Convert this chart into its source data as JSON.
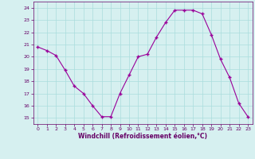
{
  "x": [
    0,
    1,
    2,
    3,
    4,
    5,
    6,
    7,
    8,
    9,
    10,
    11,
    12,
    13,
    14,
    15,
    16,
    17,
    18,
    19,
    20,
    21,
    22,
    23
  ],
  "y": [
    20.8,
    20.5,
    20.1,
    18.9,
    17.6,
    17.0,
    16.0,
    15.1,
    15.1,
    17.0,
    18.5,
    20.0,
    20.2,
    21.6,
    22.8,
    23.8,
    23.8,
    23.8,
    23.5,
    21.8,
    19.8,
    18.3,
    16.2,
    15.1
  ],
  "line_color": "#990099",
  "marker": "+",
  "marker_size": 3,
  "bg_color": "#d6f0f0",
  "grid_color": "#aadddd",
  "xlabel": "Windchill (Refroidissement éolien,°C)",
  "xlabel_color": "#660066",
  "tick_color": "#660066",
  "ylim": [
    14.5,
    24.5
  ],
  "xlim": [
    -0.5,
    23.5
  ],
  "yticks": [
    15,
    16,
    17,
    18,
    19,
    20,
    21,
    22,
    23,
    24
  ],
  "xticks": [
    0,
    1,
    2,
    3,
    4,
    5,
    6,
    7,
    8,
    9,
    10,
    11,
    12,
    13,
    14,
    15,
    16,
    17,
    18,
    19,
    20,
    21,
    22,
    23
  ]
}
